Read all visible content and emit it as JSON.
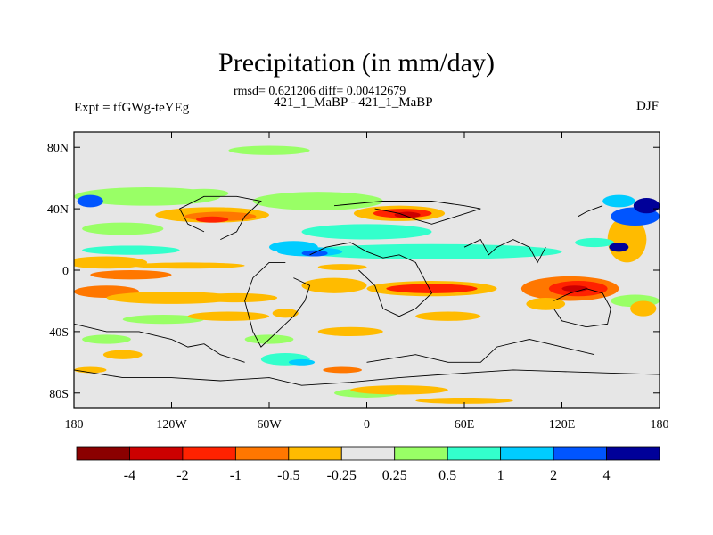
{
  "header": {
    "title": "Precipitation (in mm/day)",
    "stats": "rmsd= 0.621206 diff= 0.00412679",
    "diff_label": "421_1_MaBP - 421_1_MaBP",
    "expt": "Expt = tfGWg-teYEg",
    "season": "DJF"
  },
  "axes": {
    "lat_ticks": [
      "80N",
      "40N",
      "0",
      "40S",
      "80S"
    ],
    "lat_values": [
      80,
      40,
      0,
      -40,
      -80
    ],
    "lon_ticks": [
      "180",
      "120W",
      "60W",
      "0",
      "60E",
      "120E",
      "180"
    ],
    "lon_values": [
      -180,
      -120,
      -60,
      0,
      60,
      120,
      180
    ],
    "lat_range": [
      -90,
      90
    ],
    "lon_range": [
      -180,
      180
    ]
  },
  "colorbar": {
    "colors": [
      "#8b0000",
      "#cc0000",
      "#ff2200",
      "#ff7700",
      "#ffbb00",
      "#e6e6e6",
      "#99ff66",
      "#33ffcc",
      "#00ccff",
      "#0055ff",
      "#000099"
    ],
    "labels": [
      "-4",
      "-2",
      "-1",
      "-0.5",
      "-0.25",
      "0.25",
      "0.5",
      "1",
      "2",
      "4"
    ]
  },
  "map": {
    "background": "#e6e6e6",
    "blobs": [
      {
        "lon": -95,
        "lat": 36,
        "rlon": 35,
        "rlat": 5,
        "c": 4
      },
      {
        "lon": -90,
        "lat": 35,
        "rlon": 22,
        "rlat": 3,
        "c": 3
      },
      {
        "lon": -95,
        "lat": 33,
        "rlon": 10,
        "rlat": 2,
        "c": 2
      },
      {
        "lon": 20,
        "lat": 37,
        "rlon": 28,
        "rlat": 5,
        "c": 4
      },
      {
        "lon": 22,
        "lat": 37,
        "rlon": 18,
        "rlat": 3,
        "c": 2
      },
      {
        "lon": 25,
        "lat": 36,
        "rlon": 8,
        "rlat": 2,
        "c": 1
      },
      {
        "lon": -135,
        "lat": 48,
        "rlon": 45,
        "rlat": 6,
        "c": 6
      },
      {
        "lon": -150,
        "lat": 27,
        "rlon": 25,
        "rlat": 4,
        "c": 6
      },
      {
        "lon": -30,
        "lat": 45,
        "rlon": 40,
        "rlat": 6,
        "c": 6
      },
      {
        "lon": 0,
        "lat": 25,
        "rlon": 40,
        "rlat": 5,
        "c": 7
      },
      {
        "lon": 40,
        "lat": 12,
        "rlon": 80,
        "rlat": 5,
        "c": 7
      },
      {
        "lon": -45,
        "lat": 15,
        "rlon": 15,
        "rlat": 4,
        "c": 8
      },
      {
        "lon": -145,
        "lat": 13,
        "rlon": 30,
        "rlat": 3,
        "c": 7
      },
      {
        "lon": -35,
        "lat": 12,
        "rlon": 20,
        "rlat": 3,
        "c": 8
      },
      {
        "lon": -32,
        "lat": 11,
        "rlon": 8,
        "rlat": 2,
        "c": 9
      },
      {
        "lon": -160,
        "lat": 5,
        "rlon": 25,
        "rlat": 4,
        "c": 4
      },
      {
        "lon": -110,
        "lat": 3,
        "rlon": 35,
        "rlat": 2,
        "c": 4
      },
      {
        "lon": -145,
        "lat": -3,
        "rlon": 25,
        "rlat": 3,
        "c": 3
      },
      {
        "lon": -15,
        "lat": 2,
        "rlon": 15,
        "rlat": 2,
        "c": 4
      },
      {
        "lon": -160,
        "lat": -14,
        "rlon": 20,
        "rlat": 4,
        "c": 3
      },
      {
        "lon": -120,
        "lat": -18,
        "rlon": 40,
        "rlat": 4,
        "c": 4
      },
      {
        "lon": -80,
        "lat": -18,
        "rlon": 25,
        "rlat": 3,
        "c": 4
      },
      {
        "lon": -20,
        "lat": -10,
        "rlon": 20,
        "rlat": 5,
        "c": 4
      },
      {
        "lon": 40,
        "lat": -12,
        "rlon": 40,
        "rlat": 5,
        "c": 4
      },
      {
        "lon": 40,
        "lat": -12,
        "rlon": 28,
        "rlat": 3,
        "c": 2
      },
      {
        "lon": 125,
        "lat": -12,
        "rlon": 30,
        "rlat": 8,
        "c": 3
      },
      {
        "lon": 130,
        "lat": -12,
        "rlon": 18,
        "rlat": 5,
        "c": 2
      },
      {
        "lon": 128,
        "lat": -12,
        "rlon": 8,
        "rlat": 2,
        "c": 1
      },
      {
        "lon": 165,
        "lat": -20,
        "rlon": 15,
        "rlat": 4,
        "c": 6
      },
      {
        "lon": 160,
        "lat": 20,
        "rlon": 12,
        "rlat": 15,
        "c": 4
      },
      {
        "lon": 165,
        "lat": 35,
        "rlon": 15,
        "rlat": 6,
        "c": 9
      },
      {
        "lon": 172,
        "lat": 42,
        "rlon": 8,
        "rlat": 5,
        "c": 10
      },
      {
        "lon": 155,
        "lat": 45,
        "rlon": 10,
        "rlat": 4,
        "c": 8
      },
      {
        "lon": -170,
        "lat": 45,
        "rlon": 8,
        "rlat": 4,
        "c": 9
      },
      {
        "lon": 140,
        "lat": 18,
        "rlon": 12,
        "rlat": 3,
        "c": 7
      },
      {
        "lon": 155,
        "lat": 15,
        "rlon": 6,
        "rlat": 3,
        "c": 10
      },
      {
        "lon": 50,
        "lat": -30,
        "rlon": 20,
        "rlat": 3,
        "c": 4
      },
      {
        "lon": -60,
        "lat": -45,
        "rlon": 15,
        "rlat": 3,
        "c": 6
      },
      {
        "lon": -50,
        "lat": -58,
        "rlon": 15,
        "rlat": 4,
        "c": 7
      },
      {
        "lon": -40,
        "lat": -60,
        "rlon": 8,
        "rlat": 2,
        "c": 8
      },
      {
        "lon": -15,
        "lat": -65,
        "rlon": 12,
        "rlat": 2,
        "c": 3
      },
      {
        "lon": 0,
        "lat": -80,
        "rlon": 20,
        "rlat": 3,
        "c": 6
      },
      {
        "lon": -160,
        "lat": -45,
        "rlon": 15,
        "rlat": 3,
        "c": 6
      },
      {
        "lon": -125,
        "lat": -32,
        "rlon": 25,
        "rlat": 3,
        "c": 6
      },
      {
        "lon": -150,
        "lat": -55,
        "rlon": 12,
        "rlat": 3,
        "c": 4
      },
      {
        "lon": -170,
        "lat": -65,
        "rlon": 10,
        "rlat": 2,
        "c": 4
      },
      {
        "lon": 20,
        "lat": -78,
        "rlon": 30,
        "rlat": 3,
        "c": 4
      },
      {
        "lon": -10,
        "lat": -40,
        "rlon": 20,
        "rlat": 3,
        "c": 4
      },
      {
        "lon": -85,
        "lat": -30,
        "rlon": 25,
        "rlat": 3,
        "c": 4
      },
      {
        "lon": -50,
        "lat": -28,
        "rlon": 8,
        "rlat": 3,
        "c": 4
      },
      {
        "lon": 60,
        "lat": -85,
        "rlon": 30,
        "rlat": 2,
        "c": 4
      },
      {
        "lon": 170,
        "lat": -25,
        "rlon": 8,
        "rlat": 5,
        "c": 4
      },
      {
        "lon": -100,
        "lat": 50,
        "rlon": 15,
        "rlat": 3,
        "c": 6
      },
      {
        "lon": -60,
        "lat": 78,
        "rlon": 25,
        "rlat": 3,
        "c": 6
      },
      {
        "lon": 110,
        "lat": -22,
        "rlon": 12,
        "rlat": 4,
        "c": 4
      }
    ],
    "land_outlines": [
      [
        [
          -20,
          42
        ],
        [
          10,
          45
        ],
        [
          40,
          45
        ],
        [
          60,
          42
        ],
        [
          70,
          40
        ],
        [
          55,
          35
        ],
        [
          40,
          30
        ],
        [
          30,
          33
        ],
        [
          20,
          37
        ],
        [
          5,
          40
        ]
      ],
      [
        [
          -35,
          10
        ],
        [
          -25,
          15
        ],
        [
          -10,
          18
        ],
        [
          0,
          12
        ],
        [
          10,
          8
        ],
        [
          20,
          10
        ],
        [
          30,
          5
        ],
        [
          35,
          -5
        ],
        [
          40,
          -15
        ],
        [
          30,
          -25
        ],
        [
          20,
          -30
        ],
        [
          10,
          -25
        ],
        [
          5,
          -10
        ],
        [
          -5,
          0
        ]
      ],
      [
        [
          -45,
          -5
        ],
        [
          -35,
          -10
        ],
        [
          -38,
          -20
        ],
        [
          -45,
          -30
        ],
        [
          -55,
          -40
        ],
        [
          -65,
          -50
        ],
        [
          -70,
          -40
        ],
        [
          -75,
          -20
        ],
        [
          -70,
          -5
        ],
        [
          -60,
          5
        ],
        [
          -50,
          5
        ]
      ],
      [
        [
          -90,
          20
        ],
        [
          -80,
          25
        ],
        [
          -75,
          35
        ],
        [
          -65,
          45
        ],
        [
          -80,
          48
        ],
        [
          -100,
          48
        ],
        [
          -115,
          40
        ],
        [
          -110,
          30
        ],
        [
          -100,
          25
        ]
      ],
      [
        [
          115,
          -20
        ],
        [
          125,
          -15
        ],
        [
          135,
          -12
        ],
        [
          145,
          -15
        ],
        [
          150,
          -25
        ],
        [
          148,
          -35
        ],
        [
          135,
          -37
        ],
        [
          120,
          -33
        ],
        [
          115,
          -25
        ]
      ],
      [
        [
          -180,
          -65
        ],
        [
          -150,
          -70
        ],
        [
          -120,
          -70
        ],
        [
          -90,
          -72
        ],
        [
          -60,
          -70
        ],
        [
          -40,
          -75
        ],
        [
          -10,
          -73
        ],
        [
          20,
          -70
        ],
        [
          60,
          -67
        ],
        [
          90,
          -65
        ],
        [
          120,
          -66
        ],
        [
          150,
          -67
        ],
        [
          180,
          -68
        ],
        [
          180,
          -90
        ],
        [
          -180,
          -90
        ]
      ],
      [
        [
          -180,
          -35
        ],
        [
          -160,
          -40
        ],
        [
          -140,
          -40
        ],
        [
          -120,
          -45
        ],
        [
          -110,
          -50
        ],
        [
          -100,
          -48
        ],
        [
          -90,
          -55
        ],
        [
          -75,
          -60
        ]
      ],
      [
        [
          0,
          -60
        ],
        [
          30,
          -55
        ],
        [
          50,
          -60
        ],
        [
          70,
          -60
        ],
        [
          80,
          -50
        ],
        [
          100,
          -45
        ],
        [
          120,
          -50
        ],
        [
          140,
          -55
        ]
      ],
      [
        [
          60,
          15
        ],
        [
          70,
          20
        ],
        [
          75,
          10
        ],
        [
          80,
          15
        ],
        [
          90,
          20
        ],
        [
          100,
          15
        ],
        [
          105,
          5
        ],
        [
          110,
          15
        ]
      ],
      [
        [
          130,
          35
        ],
        [
          135,
          38
        ],
        [
          140,
          40
        ],
        [
          145,
          42
        ]
      ]
    ]
  }
}
